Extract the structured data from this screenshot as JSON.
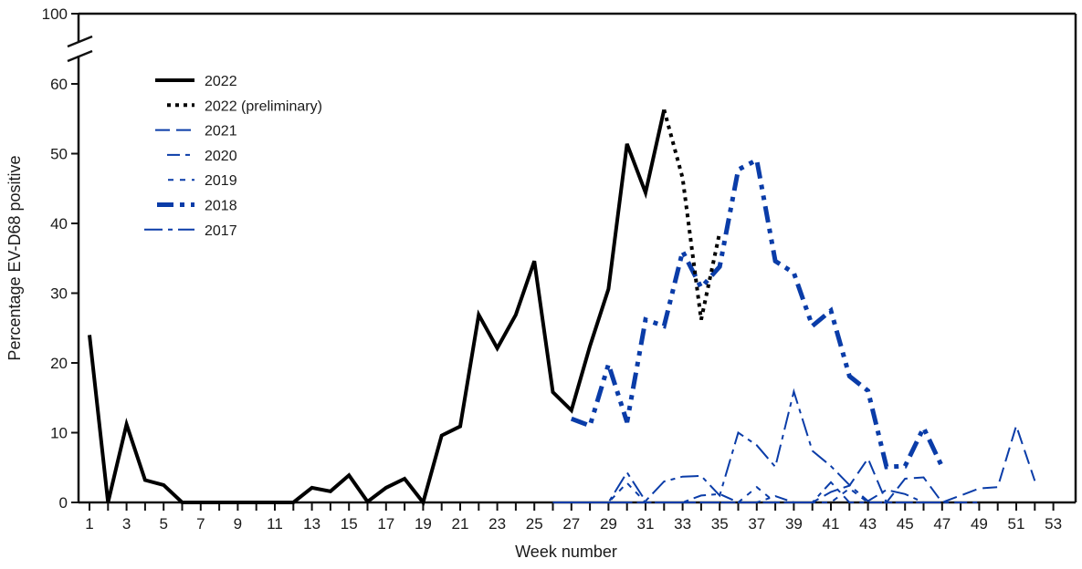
{
  "chart_data": {
    "type": "line",
    "title": "",
    "xlabel": "Week number",
    "ylabel": "Percentage EV-D68 positive",
    "ylim": [
      0,
      100
    ],
    "y_axis_break": [
      62,
      98
    ],
    "yticks": [
      0,
      10,
      20,
      30,
      40,
      50,
      60,
      100
    ],
    "xticks_labeled": [
      1,
      3,
      5,
      7,
      9,
      11,
      13,
      15,
      17,
      19,
      21,
      23,
      25,
      27,
      29,
      31,
      33,
      35,
      37,
      39,
      41,
      43,
      45,
      47,
      49,
      51,
      53
    ],
    "xlim": [
      1,
      53
    ],
    "grid": false,
    "legend_position": "upper-left inside",
    "series": [
      {
        "name": "2022",
        "color": "#000000",
        "style": "solid-thick",
        "x": [
          1,
          2,
          3,
          4,
          5,
          6,
          7,
          8,
          9,
          10,
          11,
          12,
          13,
          14,
          15,
          16,
          17,
          18,
          19,
          20,
          21,
          22,
          23,
          24,
          25,
          26,
          27,
          28,
          29,
          30,
          31,
          32
        ],
        "values": [
          24,
          0,
          11.2,
          3.2,
          2.5,
          0,
          0,
          0,
          0,
          0,
          0,
          0,
          2.1,
          1.6,
          3.9,
          0.1,
          2.1,
          3.4,
          0,
          9.6,
          10.9,
          26.9,
          22.1,
          26.9,
          34.6,
          15.8,
          13.2,
          22.4,
          30.6,
          51.4,
          44.4,
          56.3
        ]
      },
      {
        "name": "2022 (preliminary)",
        "color": "#000000",
        "style": "dotted",
        "x": [
          32,
          33,
          34,
          35
        ],
        "values": [
          56.3,
          46.5,
          26.2,
          38.7
        ]
      },
      {
        "name": "2021",
        "color": "#0a3ca8",
        "style": "long-dash",
        "x": [
          26,
          27,
          28,
          29,
          30,
          31,
          32,
          33,
          34,
          35,
          36,
          37,
          38,
          39,
          40,
          41,
          42,
          43,
          44,
          45,
          46,
          47,
          48,
          49,
          50,
          51,
          52
        ],
        "values": [
          0,
          0,
          0,
          0,
          0,
          0,
          0,
          0,
          0,
          0,
          0,
          0,
          0,
          0,
          0,
          1.5,
          2.4,
          6.3,
          0,
          3.4,
          3.6,
          0,
          1.0,
          2.0,
          2.2,
          11.0,
          3.1
        ]
      },
      {
        "name": "2020",
        "color": "#0a3ca8",
        "style": "dash-dot",
        "x": [
          26,
          27,
          28,
          29,
          30,
          31,
          32,
          33,
          34,
          35,
          36,
          37,
          38,
          39,
          40,
          41,
          42,
          43,
          44,
          45,
          46,
          47,
          48,
          49
        ],
        "values": [
          0,
          0,
          0,
          0,
          0,
          0,
          0,
          0,
          1.0,
          1.2,
          0,
          0,
          0.9,
          0,
          0,
          2.9,
          0,
          0,
          0,
          0,
          0,
          0,
          0,
          0
        ]
      },
      {
        "name": "2019",
        "color": "#0a3ca8",
        "style": "short-dash",
        "x": [
          26,
          27,
          28,
          29,
          30,
          31,
          32,
          33,
          34,
          35,
          36,
          37,
          38,
          39,
          40,
          41,
          42,
          43,
          44,
          45,
          46,
          47
        ],
        "values": [
          0,
          0,
          0,
          0,
          2.8,
          0,
          0,
          0,
          0,
          0,
          0,
          2.2,
          0,
          0,
          0,
          0,
          2.0,
          0,
          0,
          0,
          0,
          0
        ]
      },
      {
        "name": "2018",
        "color": "#0a3ca8",
        "style": "dash-dot-dot-thick",
        "x": [
          27,
          28,
          29,
          30,
          31,
          32,
          33,
          34,
          35,
          36,
          37,
          38,
          39,
          40,
          41,
          42,
          43,
          44,
          45,
          46,
          47
        ],
        "values": [
          12,
          11,
          19.8,
          11.5,
          26.2,
          25.3,
          36,
          30.8,
          33.8,
          47.7,
          49.1,
          34.6,
          32.9,
          25.3,
          27.5,
          18.1,
          16,
          5.1,
          5.2,
          10.7,
          5.1
        ]
      },
      {
        "name": "2017",
        "color": "#0a3ca8",
        "style": "long-dash-dot",
        "x": [
          26,
          27,
          28,
          29,
          30,
          31,
          32,
          33,
          34,
          35,
          36,
          37,
          38,
          39,
          40,
          41,
          42,
          43,
          44,
          45,
          46,
          47
        ],
        "values": [
          0,
          0,
          0,
          0,
          4.3,
          0.2,
          3.0,
          3.7,
          3.8,
          1.0,
          10.0,
          8.2,
          5.1,
          15.9,
          7.4,
          5.2,
          2.5,
          0.2,
          1.8,
          1.2,
          0,
          0
        ]
      }
    ]
  },
  "legend": {
    "items": [
      {
        "label": "2022"
      },
      {
        "label": "2022 (preliminary)"
      },
      {
        "label": "2021"
      },
      {
        "label": "2020"
      },
      {
        "label": "2019"
      },
      {
        "label": "2018"
      },
      {
        "label": "2017"
      }
    ]
  },
  "axes": {
    "x_title": "Week number",
    "y_title": "Percentage EV-D68 positive"
  }
}
